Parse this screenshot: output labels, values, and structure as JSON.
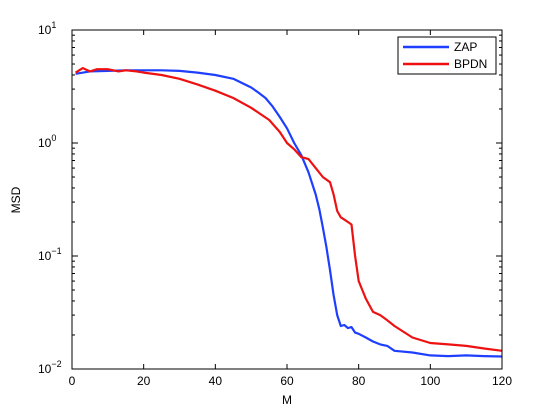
{
  "chart_data": {
    "type": "line",
    "title": "",
    "xlabel": "M",
    "ylabel": "MSD",
    "xlim": [
      0,
      120
    ],
    "ylim": [
      0.01,
      10
    ],
    "yscale": "log",
    "grid": false,
    "legend_position": "top-right",
    "x_ticks": [
      "0",
      "20",
      "40",
      "60",
      "80",
      "100",
      "120"
    ],
    "y_ticks": [
      {
        "value": 10,
        "base": "10",
        "exp": "1"
      },
      {
        "value": 1,
        "base": "10",
        "exp": "0"
      },
      {
        "value": 0.1,
        "base": "10",
        "exp": "−1"
      },
      {
        "value": 0.01,
        "base": "10",
        "exp": "−2"
      }
    ],
    "series": [
      {
        "name": "ZAP",
        "color": "#1f3fff",
        "x": [
          1,
          5,
          10,
          15,
          20,
          25,
          30,
          35,
          40,
          45,
          50,
          52,
          54,
          56,
          58,
          60,
          62,
          64,
          66,
          68,
          69,
          70,
          71,
          72,
          73,
          74,
          75,
          76,
          77,
          78,
          79,
          80,
          82,
          84,
          86,
          88,
          90,
          95,
          100,
          105,
          110,
          115,
          120
        ],
        "y": [
          4.1,
          4.3,
          4.35,
          4.4,
          4.4,
          4.4,
          4.35,
          4.2,
          4.0,
          3.7,
          3.1,
          2.8,
          2.5,
          2.1,
          1.7,
          1.35,
          1.0,
          0.78,
          0.55,
          0.35,
          0.26,
          0.18,
          0.12,
          0.075,
          0.045,
          0.03,
          0.024,
          0.0245,
          0.023,
          0.0235,
          0.021,
          0.0205,
          0.019,
          0.0175,
          0.0165,
          0.016,
          0.0145,
          0.014,
          0.0132,
          0.013,
          0.0132,
          0.013,
          0.0129
        ]
      },
      {
        "name": "BPDN",
        "color": "#ee1111",
        "x": [
          1,
          3,
          5,
          7,
          10,
          13,
          15,
          18,
          20,
          25,
          30,
          35,
          40,
          45,
          50,
          55,
          58,
          60,
          62,
          64,
          66,
          68,
          70,
          72,
          73,
          74,
          75,
          76,
          77,
          78,
          79,
          80,
          81,
          82,
          84,
          86,
          88,
          90,
          95,
          100,
          105,
          110,
          115,
          120
        ],
        "y": [
          4.2,
          4.6,
          4.3,
          4.5,
          4.5,
          4.3,
          4.4,
          4.3,
          4.2,
          4.0,
          3.7,
          3.3,
          2.9,
          2.5,
          2.05,
          1.6,
          1.25,
          1.0,
          0.88,
          0.75,
          0.72,
          0.6,
          0.5,
          0.45,
          0.35,
          0.25,
          0.22,
          0.21,
          0.2,
          0.19,
          0.1,
          0.06,
          0.05,
          0.042,
          0.032,
          0.03,
          0.027,
          0.024,
          0.019,
          0.017,
          0.0165,
          0.016,
          0.0152,
          0.0145
        ]
      }
    ]
  }
}
